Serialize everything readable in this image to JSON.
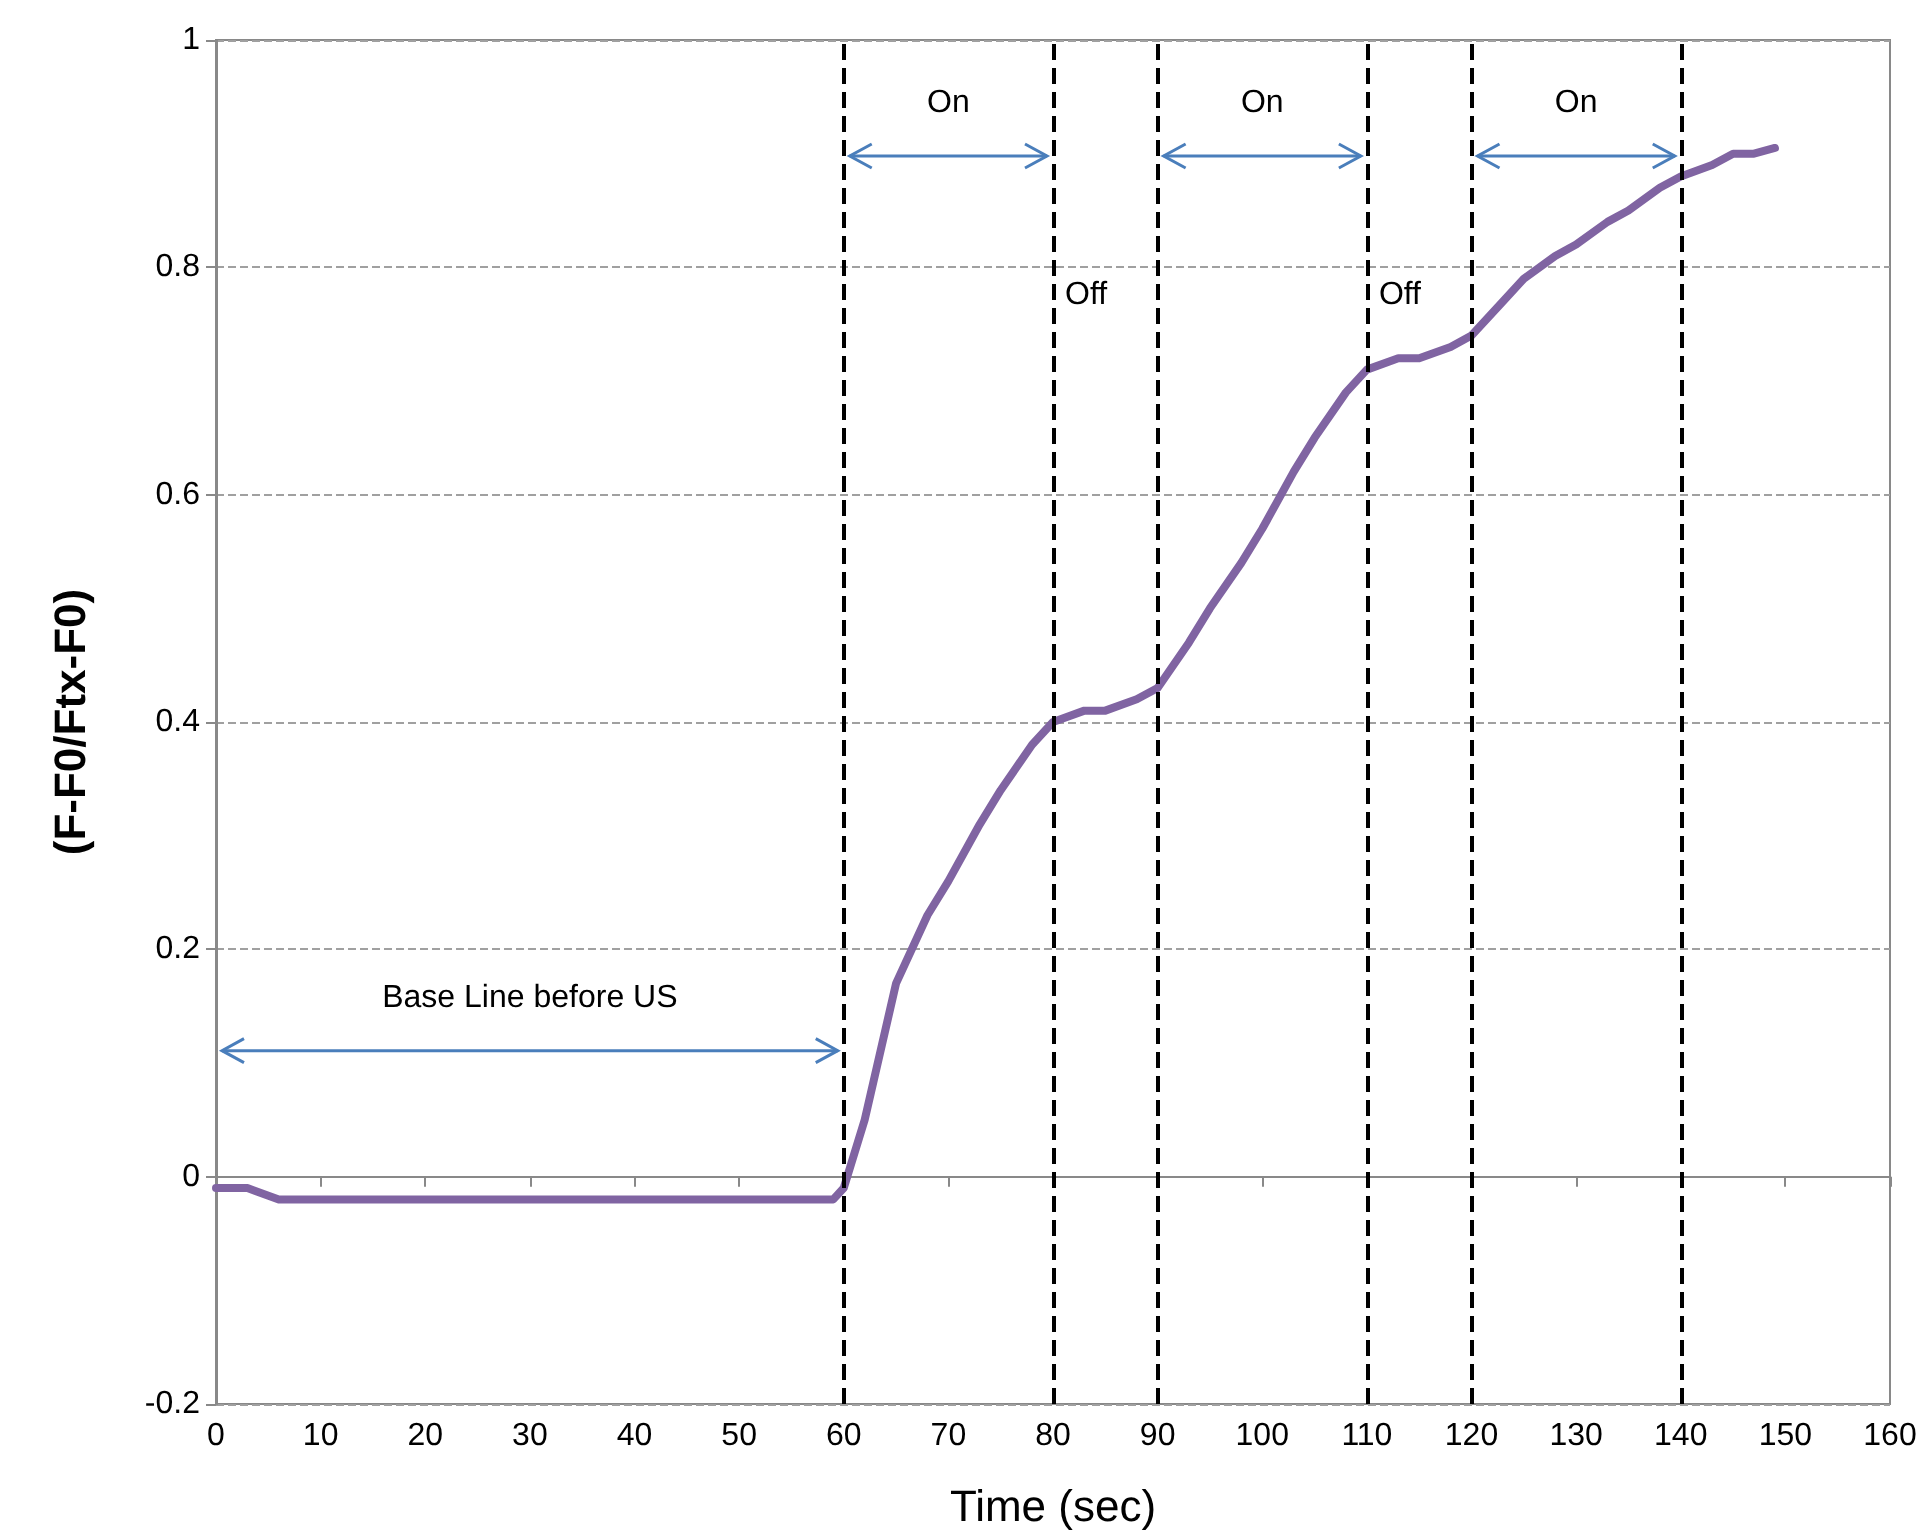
{
  "chart_data": {
    "type": "line",
    "xlabel": "Time (sec)",
    "ylabel": "(F-F0/Ftx-F0)",
    "x": [
      0,
      3,
      6,
      10,
      15,
      20,
      25,
      30,
      35,
      40,
      45,
      50,
      55,
      59,
      60,
      62,
      65,
      68,
      70,
      73,
      75,
      78,
      80,
      83,
      85,
      88,
      90,
      93,
      95,
      98,
      100,
      103,
      105,
      108,
      110,
      113,
      115,
      118,
      120,
      123,
      125,
      128,
      130,
      133,
      135,
      138,
      140,
      143,
      145,
      147,
      149
    ],
    "series": [
      {
        "color": "#8064a2",
        "values": [
          -0.01,
          -0.01,
          -0.02,
          -0.02,
          -0.02,
          -0.02,
          -0.02,
          -0.02,
          -0.02,
          -0.02,
          -0.02,
          -0.02,
          -0.02,
          -0.02,
          -0.01,
          0.05,
          0.17,
          0.23,
          0.26,
          0.31,
          0.34,
          0.38,
          0.4,
          0.41,
          0.41,
          0.42,
          0.43,
          0.47,
          0.5,
          0.54,
          0.57,
          0.62,
          0.65,
          0.69,
          0.71,
          0.72,
          0.72,
          0.73,
          0.74,
          0.77,
          0.79,
          0.81,
          0.82,
          0.84,
          0.85,
          0.87,
          0.88,
          0.89,
          0.9,
          0.9,
          0.905
        ]
      }
    ],
    "xlim": [
      0,
      160
    ],
    "xticks": [
      0,
      10,
      20,
      30,
      40,
      50,
      60,
      70,
      80,
      90,
      100,
      110,
      120,
      130,
      140,
      150,
      160
    ],
    "ylim": [
      -0.2,
      1
    ],
    "yticks": [
      -0.2,
      0,
      0.2,
      0.4,
      0.6,
      0.8,
      1
    ],
    "grid": "y",
    "marker": "none",
    "line_style": "solid",
    "ref_lines": [
      {
        "axis": "x",
        "value": 60,
        "color": "#000000",
        "line_style": "dashed"
      },
      {
        "axis": "x",
        "value": 80,
        "color": "#000000",
        "line_style": "dashed"
      },
      {
        "axis": "x",
        "value": 90,
        "color": "#000000",
        "line_style": "dashed"
      },
      {
        "axis": "x",
        "value": 110,
        "color": "#000000",
        "line_style": "dashed"
      },
      {
        "axis": "x",
        "value": 120,
        "color": "#000000",
        "line_style": "dashed"
      },
      {
        "axis": "x",
        "value": 140,
        "color": "#000000",
        "line_style": "dashed"
      }
    ],
    "annotations": [
      "Base Line before US",
      "On",
      "Off",
      "On",
      "Off",
      "On"
    ]
  }
}
